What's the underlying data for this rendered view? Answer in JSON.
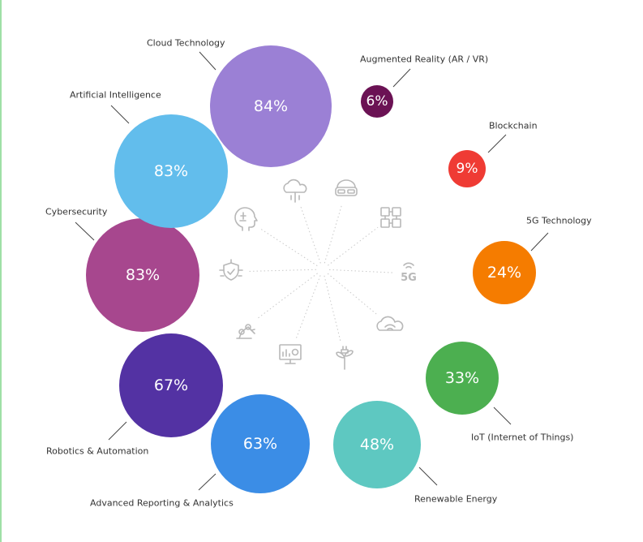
{
  "chart_data": {
    "type": "bubble",
    "unit": "%",
    "items": [
      {
        "label": "Cloud Technology",
        "value": 84,
        "display": "84%",
        "color": "#9b80d5",
        "icon": "cloud-icon"
      },
      {
        "label": "Augmented Reality (AR / VR)",
        "value": 6,
        "display": "6%",
        "color": "#6b1254",
        "icon": "vr-headset-icon"
      },
      {
        "label": "Blockchain",
        "value": 9,
        "display": "9%",
        "color": "#ef3b34",
        "icon": "blockchain-icon"
      },
      {
        "label": "5G Technology",
        "value": 24,
        "display": "24%",
        "color": "#f57c00",
        "icon": "5g-signal-icon"
      },
      {
        "label": "IoT (Internet of Things)",
        "value": 33,
        "display": "33%",
        "color": "#4caf50",
        "icon": "cloud-wifi-icon"
      },
      {
        "label": "Renewable Energy",
        "value": 48,
        "display": "48%",
        "color": "#5ec8c1",
        "icon": "plant-plug-icon"
      },
      {
        "label": "Advanced Reporting & Analytics",
        "value": 63,
        "display": "63%",
        "color": "#3b8de6",
        "icon": "analytics-monitor-icon"
      },
      {
        "label": "Robotics & Automation",
        "value": 67,
        "display": "67%",
        "color": "#5332a3",
        "icon": "robot-arm-icon"
      },
      {
        "label": "Cybersecurity",
        "value": 83,
        "display": "83%",
        "color": "#a7478e",
        "icon": "shield-circuit-icon"
      },
      {
        "label": "Artificial Intelligence",
        "value": 83,
        "display": "83%",
        "color": "#62bdec",
        "icon": "ai-head-icon"
      }
    ]
  }
}
